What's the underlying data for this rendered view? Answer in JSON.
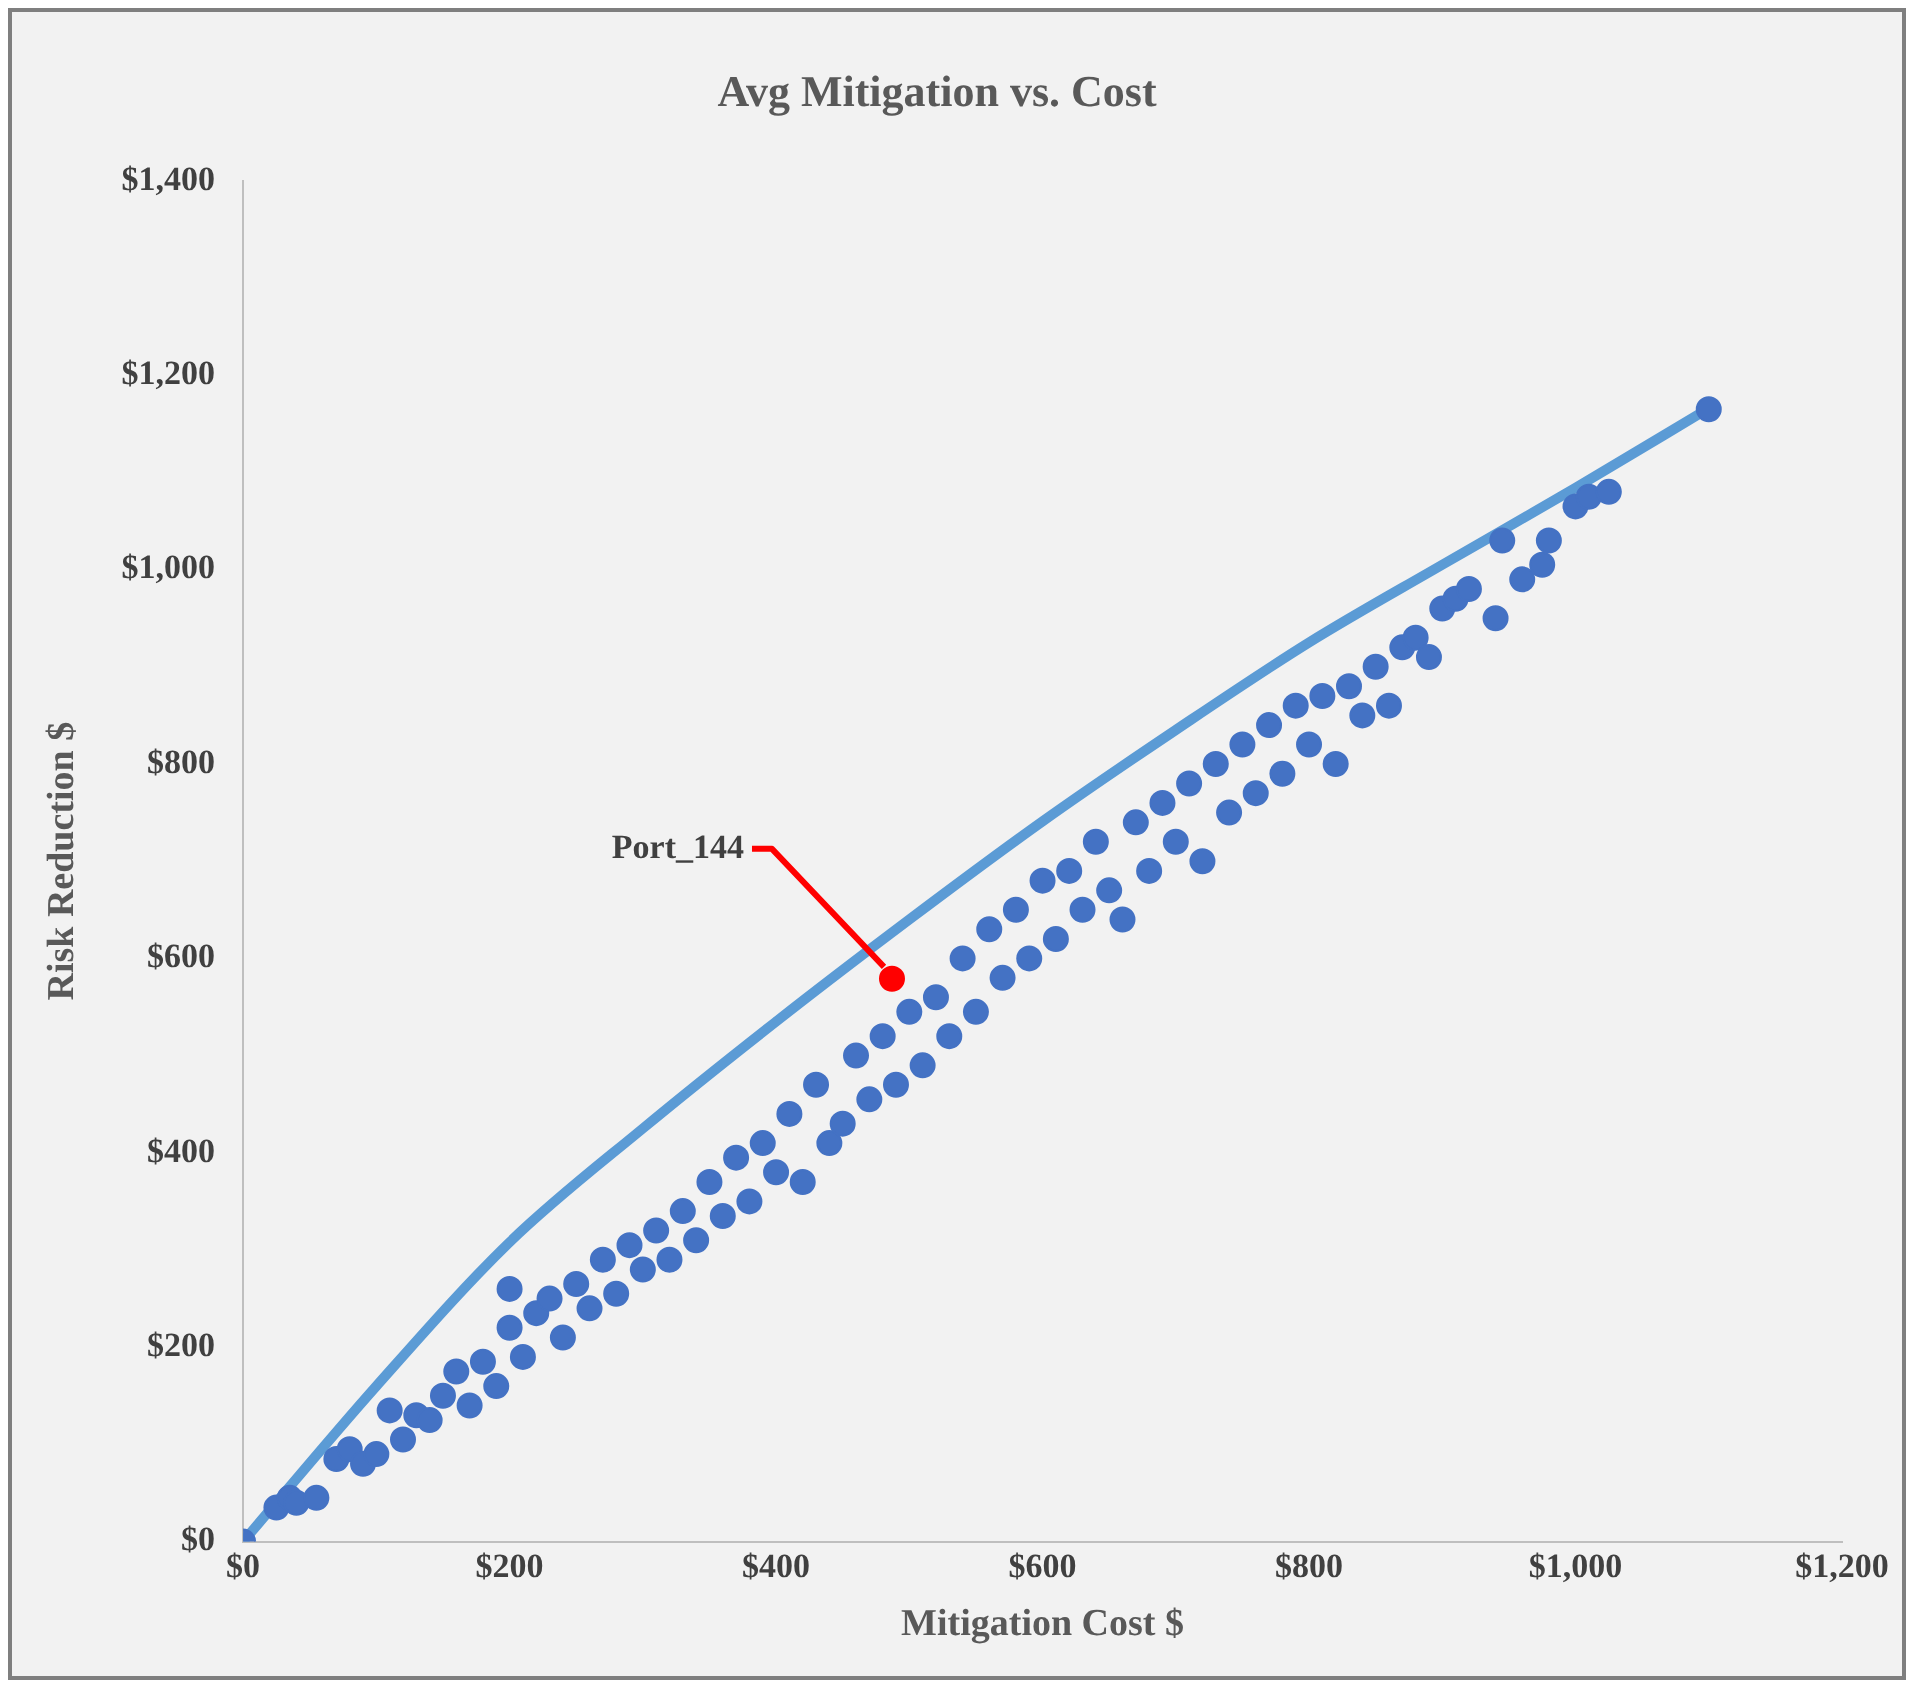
{
  "chart_data": {
    "type": "scatter",
    "title": "Avg Mitigation vs. Cost",
    "xlabel": "Mitigation Cost $",
    "ylabel": "Risk Reduction $",
    "xlim": [
      0,
      1200
    ],
    "ylim": [
      0,
      1400
    ],
    "xticks": [
      {
        "value": 0,
        "label": "$0"
      },
      {
        "value": 200,
        "label": "$200"
      },
      {
        "value": 400,
        "label": "$400"
      },
      {
        "value": 600,
        "label": "$600"
      },
      {
        "value": 800,
        "label": "$800"
      },
      {
        "value": 1000,
        "label": "$1,000"
      },
      {
        "value": 1200,
        "label": "$1,200"
      }
    ],
    "yticks": [
      {
        "value": 0,
        "label": "$0"
      },
      {
        "value": 200,
        "label": "$200"
      },
      {
        "value": 400,
        "label": "$400"
      },
      {
        "value": 600,
        "label": "$600"
      },
      {
        "value": 800,
        "label": "$800"
      },
      {
        "value": 1000,
        "label": "$1,000"
      },
      {
        "value": 1200,
        "label": "$1,200"
      },
      {
        "value": 1400,
        "label": "$1,400"
      }
    ],
    "grid": false,
    "legend": false,
    "marker": "circle",
    "annotations": [
      {
        "text": "Port_144",
        "x": 487,
        "y": 579
      }
    ],
    "series": [
      {
        "type": "scatter",
        "color": "#4472c4",
        "x": [
          0,
          25,
          35,
          40,
          55,
          70,
          80,
          90,
          100,
          110,
          120,
          130,
          140,
          150,
          160,
          170,
          180,
          190,
          200,
          200,
          210,
          220,
          230,
          240,
          250,
          260,
          270,
          280,
          290,
          300,
          310,
          320,
          330,
          340,
          350,
          360,
          370,
          380,
          390,
          400,
          410,
          420,
          430,
          440,
          450,
          460,
          470,
          480,
          490,
          500,
          510,
          520,
          530,
          540,
          550,
          560,
          570,
          580,
          590,
          600,
          610,
          620,
          630,
          640,
          650,
          660,
          670,
          680,
          690,
          700,
          710,
          720,
          730,
          740,
          750,
          760,
          770,
          780,
          790,
          800,
          810,
          820,
          830,
          840,
          850,
          860,
          870,
          880,
          890,
          900,
          910,
          920,
          940,
          945,
          960,
          975,
          980,
          1000,
          1010,
          1025,
          1100
        ],
        "values": [
          0,
          35,
          45,
          40,
          45,
          85,
          95,
          80,
          90,
          135,
          105,
          130,
          125,
          150,
          175,
          140,
          185,
          160,
          220,
          260,
          190,
          235,
          250,
          210,
          265,
          240,
          290,
          255,
          305,
          280,
          320,
          290,
          340,
          310,
          370,
          335,
          395,
          350,
          410,
          380,
          440,
          370,
          470,
          410,
          430,
          500,
          455,
          520,
          470,
          545,
          490,
          560,
          520,
          600,
          545,
          630,
          580,
          650,
          600,
          680,
          620,
          690,
          650,
          720,
          670,
          640,
          740,
          690,
          760,
          720,
          780,
          700,
          800,
          750,
          820,
          770,
          840,
          790,
          860,
          820,
          870,
          800,
          880,
          850,
          900,
          860,
          920,
          930,
          910,
          960,
          970,
          980,
          950,
          1030,
          990,
          1005,
          1030,
          1065,
          1075,
          1080,
          1165
        ]
      },
      {
        "type": "line",
        "color": "#5b9bd5",
        "marker": "none",
        "x": [
          0,
          100,
          200,
          300,
          400,
          500,
          600,
          700,
          800,
          900,
          1000,
          1100
        ],
        "values": [
          0,
          160,
          308,
          425,
          535,
          640,
          741,
          835,
          925,
          1005,
          1084,
          1166
        ]
      },
      {
        "type": "scatter",
        "color": "#ff0000",
        "x": [
          487
        ],
        "values": [
          579
        ]
      }
    ]
  }
}
